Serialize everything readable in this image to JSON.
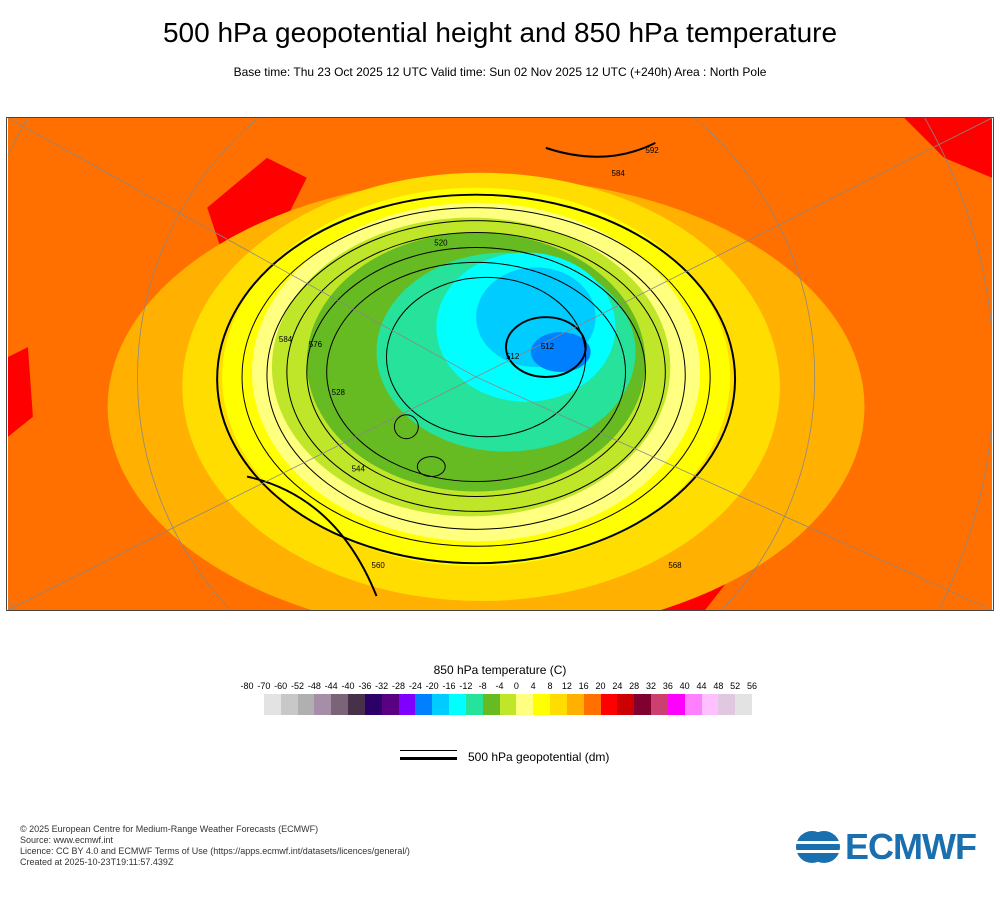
{
  "title": "500 hPa geopotential height and 850 hPa temperature",
  "subtitle": "Base time: Thu 23 Oct 2025 12 UTC Valid time: Sun 02 Nov 2025 12 UTC (+240h) Area : North Pole",
  "chart_data": {
    "type": "heatmap",
    "title": "500 hPa geopotential height and 850 hPa temperature",
    "area": "North Pole",
    "colorbar": {
      "title": "850 hPa temperature (C)",
      "ticks": [
        "-80",
        "-70",
        "-60",
        "-52",
        "-48",
        "-44",
        "-40",
        "-36",
        "-32",
        "-28",
        "-24",
        "-20",
        "-16",
        "-12",
        "-8",
        "-4",
        "0",
        "4",
        "8",
        "12",
        "16",
        "20",
        "24",
        "28",
        "32",
        "36",
        "40",
        "44",
        "48",
        "52",
        "56"
      ],
      "colors": [
        "#e3e3e3",
        "#c8c8c8",
        "#b0b0b0",
        "#a78ea8",
        "#7a6478",
        "#46304a",
        "#2c0066",
        "#5a0082",
        "#8000ff",
        "#0080ff",
        "#00ccff",
        "#00ffff",
        "#26e29a",
        "#66bb22",
        "#c0e62a",
        "#ffff80",
        "#ffff00",
        "#ffdd00",
        "#ffb000",
        "#ff7000",
        "#ff0000",
        "#cc0000",
        "#800030",
        "#cc4070",
        "#ff00ff",
        "#ff80ff",
        "#ffc0ff",
        "#e0c8e0",
        "#e3e3e3"
      ]
    },
    "contour_legend": "500 hPa geopotential (dm)",
    "contour_labels": [
      "592",
      "584",
      "576",
      "584",
      "520",
      "512",
      "512",
      "528",
      "544",
      "560",
      "568"
    ]
  },
  "footer": {
    "copyright": "© 2025 European Centre for Medium-Range Weather Forecasts (ECMWF)",
    "source": "Source: www.ecmwf.int",
    "licence": "Licence: CC BY 4.0 and ECMWF Terms of Use (https://apps.ecmwf.int/datasets/licences/general/)",
    "created": "Created at 2025-10-23T19:11:57.439Z"
  },
  "logo": "ECMWF"
}
